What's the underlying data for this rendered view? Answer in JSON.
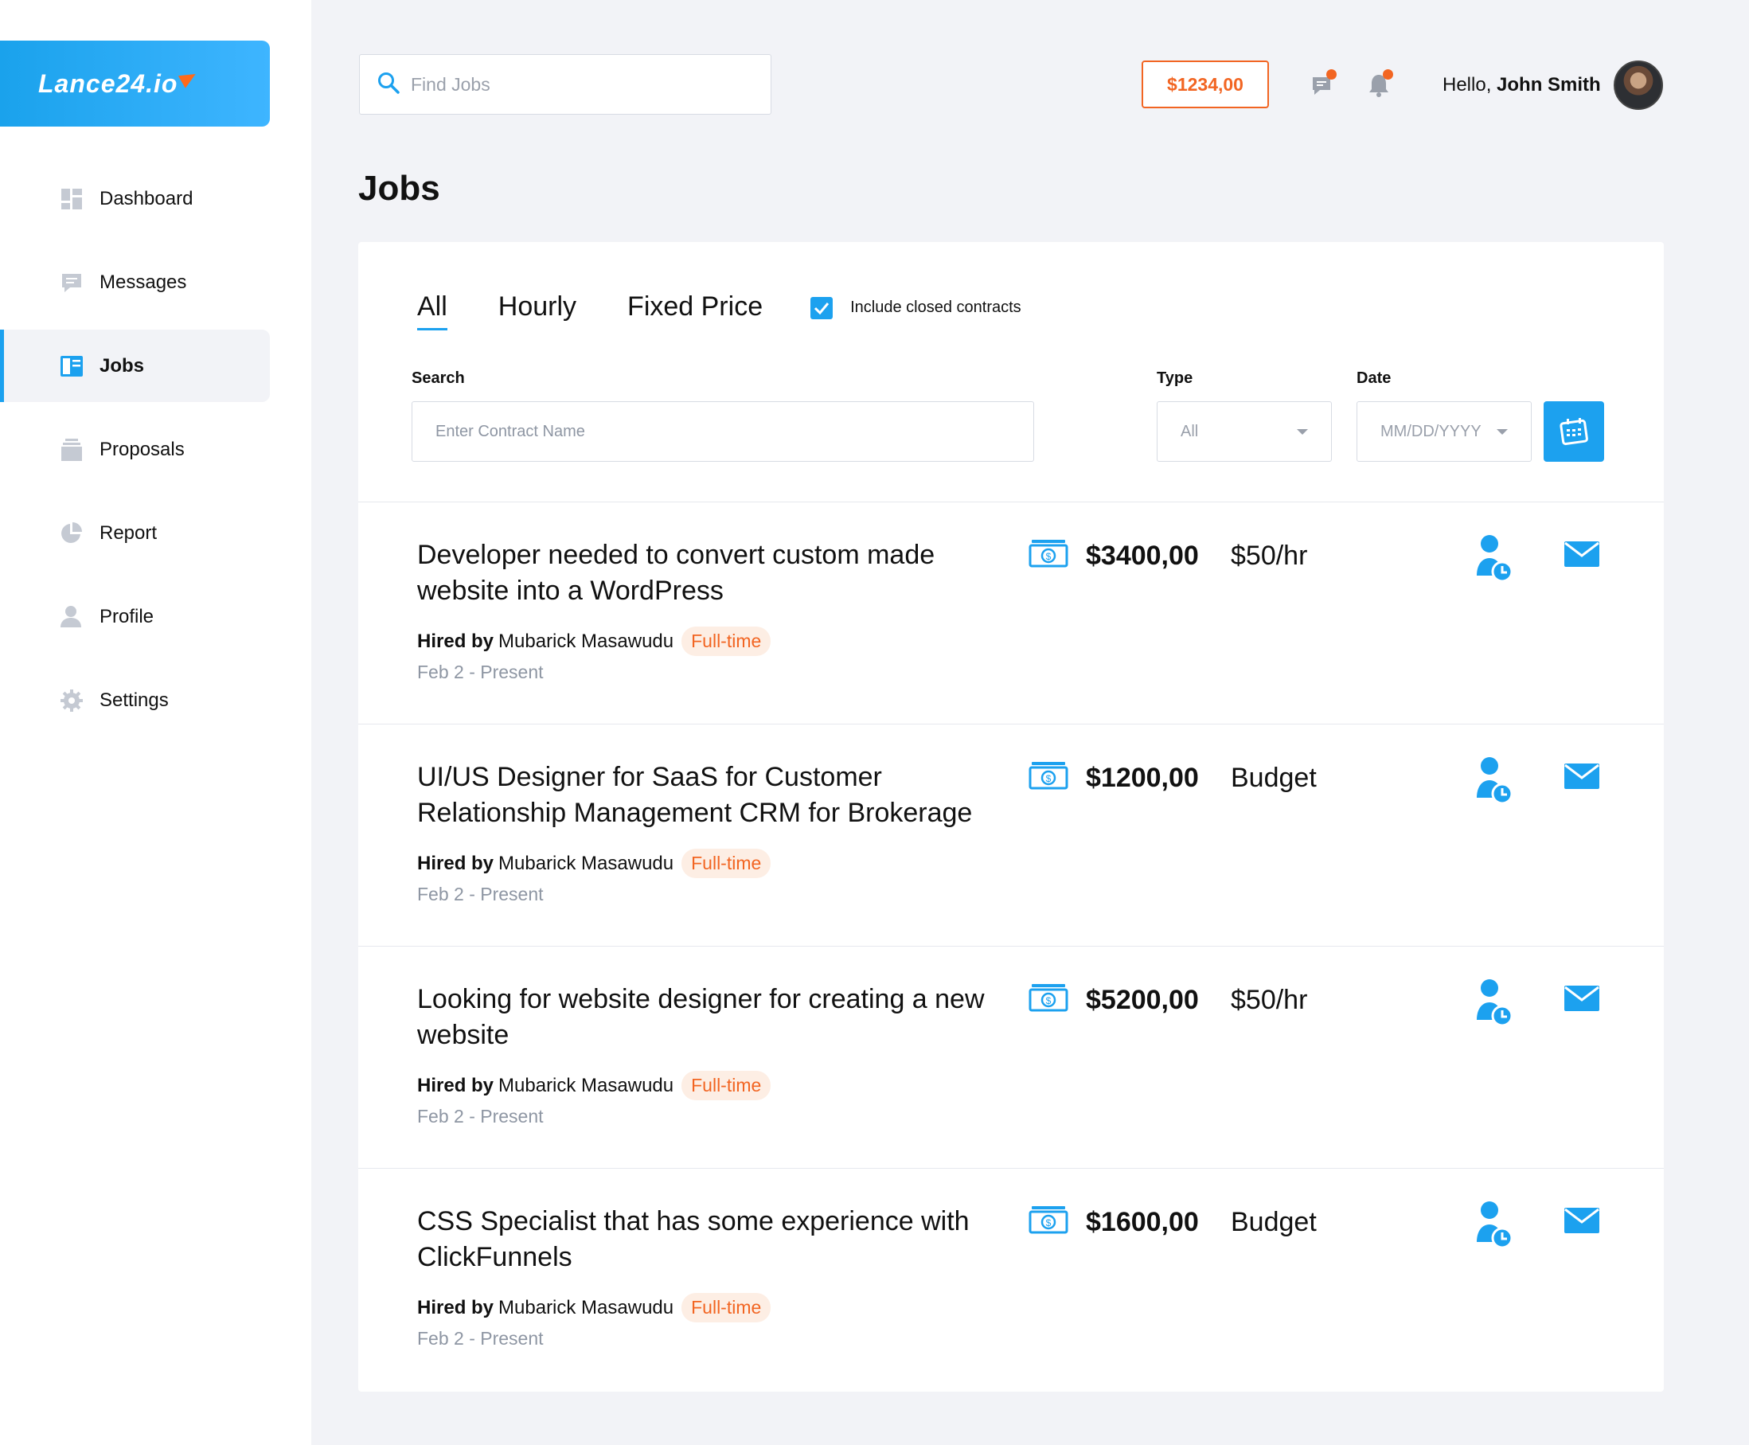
{
  "brand": {
    "logo_text": "Lance24.io"
  },
  "sidebar": {
    "items": [
      {
        "label": "Dashboard",
        "icon": "dashboard-icon"
      },
      {
        "label": "Messages",
        "icon": "messages-icon"
      },
      {
        "label": "Jobs",
        "icon": "jobs-icon",
        "active": true
      },
      {
        "label": "Proposals",
        "icon": "proposals-icon"
      },
      {
        "label": "Report",
        "icon": "report-icon"
      },
      {
        "label": "Profile",
        "icon": "profile-icon"
      },
      {
        "label": "Settings",
        "icon": "settings-icon"
      }
    ]
  },
  "topbar": {
    "search_placeholder": "Find Jobs",
    "balance": "$1234,00",
    "greeting_prefix": "Hello,",
    "user_name": "John Smith"
  },
  "page": {
    "title": "Jobs"
  },
  "filters": {
    "tabs": [
      "All",
      "Hourly",
      "Fixed Price"
    ],
    "active_tab": "All",
    "include_closed_label": "Include closed contracts",
    "include_closed_checked": true,
    "search_label": "Search",
    "search_placeholder": "Enter Contract Name",
    "type_label": "Type",
    "type_value": "All",
    "date_label": "Date",
    "date_placeholder": "MM/DD/YYYY"
  },
  "jobs": [
    {
      "title": "Developer needed to convert custom made website into a WordPress",
      "hired_by_label": "Hired by",
      "hired_by": "Mubarick Masawudu",
      "tag": "Full-time",
      "date": "Feb 2 - Present",
      "amount": "$3400,00",
      "rate": "$50/hr"
    },
    {
      "title": "UI/US Designer for SaaS for Customer Relationship Management CRM for Brokerage",
      "hired_by_label": "Hired by",
      "hired_by": "Mubarick Masawudu",
      "tag": "Full-time",
      "date": "Feb 2 - Present",
      "amount": "$1200,00",
      "rate": "Budget"
    },
    {
      "title": "Looking for website designer for creating a new website",
      "hired_by_label": "Hired by",
      "hired_by": "Mubarick Masawudu",
      "tag": "Full-time",
      "date": "Feb 2 - Present",
      "amount": "$5200,00",
      "rate": "$50/hr"
    },
    {
      "title": "CSS Specialist that has some experience with ClickFunnels",
      "hired_by_label": "Hired by",
      "hired_by": "Mubarick Masawudu",
      "tag": "Full-time",
      "date": "Feb 2 - Present",
      "amount": "$1600,00",
      "rate": "Budget"
    }
  ],
  "colors": {
    "accent": "#1ca1ef",
    "orange": "#f26522",
    "background": "#f2f3f7"
  }
}
